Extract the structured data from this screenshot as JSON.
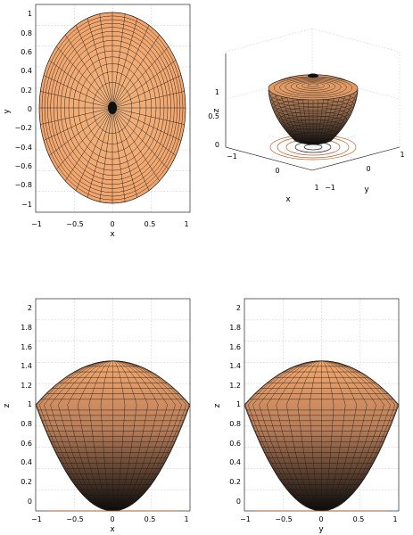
{
  "colors": {
    "surface_top": "#f4a76d",
    "surface_bottom": "#000000",
    "mesh": "#1a1a1a",
    "grid": "#c8c8c8",
    "contour": "#b55f2c"
  },
  "chart_data": [
    {
      "type": "surface",
      "view": "top",
      "xlabel": "x",
      "ylabel": "y",
      "xlim": [
        -1,
        1
      ],
      "ylim": [
        -1,
        1
      ],
      "xticks": [
        "−1",
        "−0.5",
        "0",
        "0.5",
        "1"
      ],
      "yticks": [
        "1",
        "0.8",
        "0.6",
        "0.4",
        "0.2",
        "0",
        "−0.2",
        "−0.4",
        "−0.6",
        "−0.8",
        "−1"
      ],
      "grid": true
    },
    {
      "type": "surface",
      "view": "3d",
      "xlabel": "x",
      "ylabel": "y",
      "zlabel": "z",
      "xticks": [
        "−1",
        "0",
        "1"
      ],
      "yticks": [
        "−1",
        "0",
        "1"
      ],
      "zticks": [
        "0",
        "0.5",
        "1"
      ],
      "contours": true,
      "grid": true
    },
    {
      "type": "surface",
      "view": "side",
      "xlabel": "x",
      "ylabel": "z",
      "xlim": [
        -1,
        1
      ],
      "ylim": [
        0,
        2
      ],
      "xticks": [
        "−1",
        "−0.5",
        "0",
        "0.5",
        "1"
      ],
      "yticks": [
        "2",
        "1.8",
        "1.6",
        "1.4",
        "1.2",
        "1",
        "0.8",
        "0.6",
        "0.4",
        "0.2",
        "0"
      ],
      "grid": true
    },
    {
      "type": "surface",
      "view": "side",
      "xlabel": "y",
      "ylabel": "z",
      "xlim": [
        -1,
        1
      ],
      "ylim": [
        0,
        2
      ],
      "xticks": [
        "−1",
        "−0.5",
        "0",
        "0.5",
        "1"
      ],
      "yticks": [
        "2",
        "1.8",
        "1.6",
        "1.4",
        "1.2",
        "1",
        "0.8",
        "0.6",
        "0.4",
        "0.2",
        "0"
      ],
      "grid": true
    }
  ]
}
